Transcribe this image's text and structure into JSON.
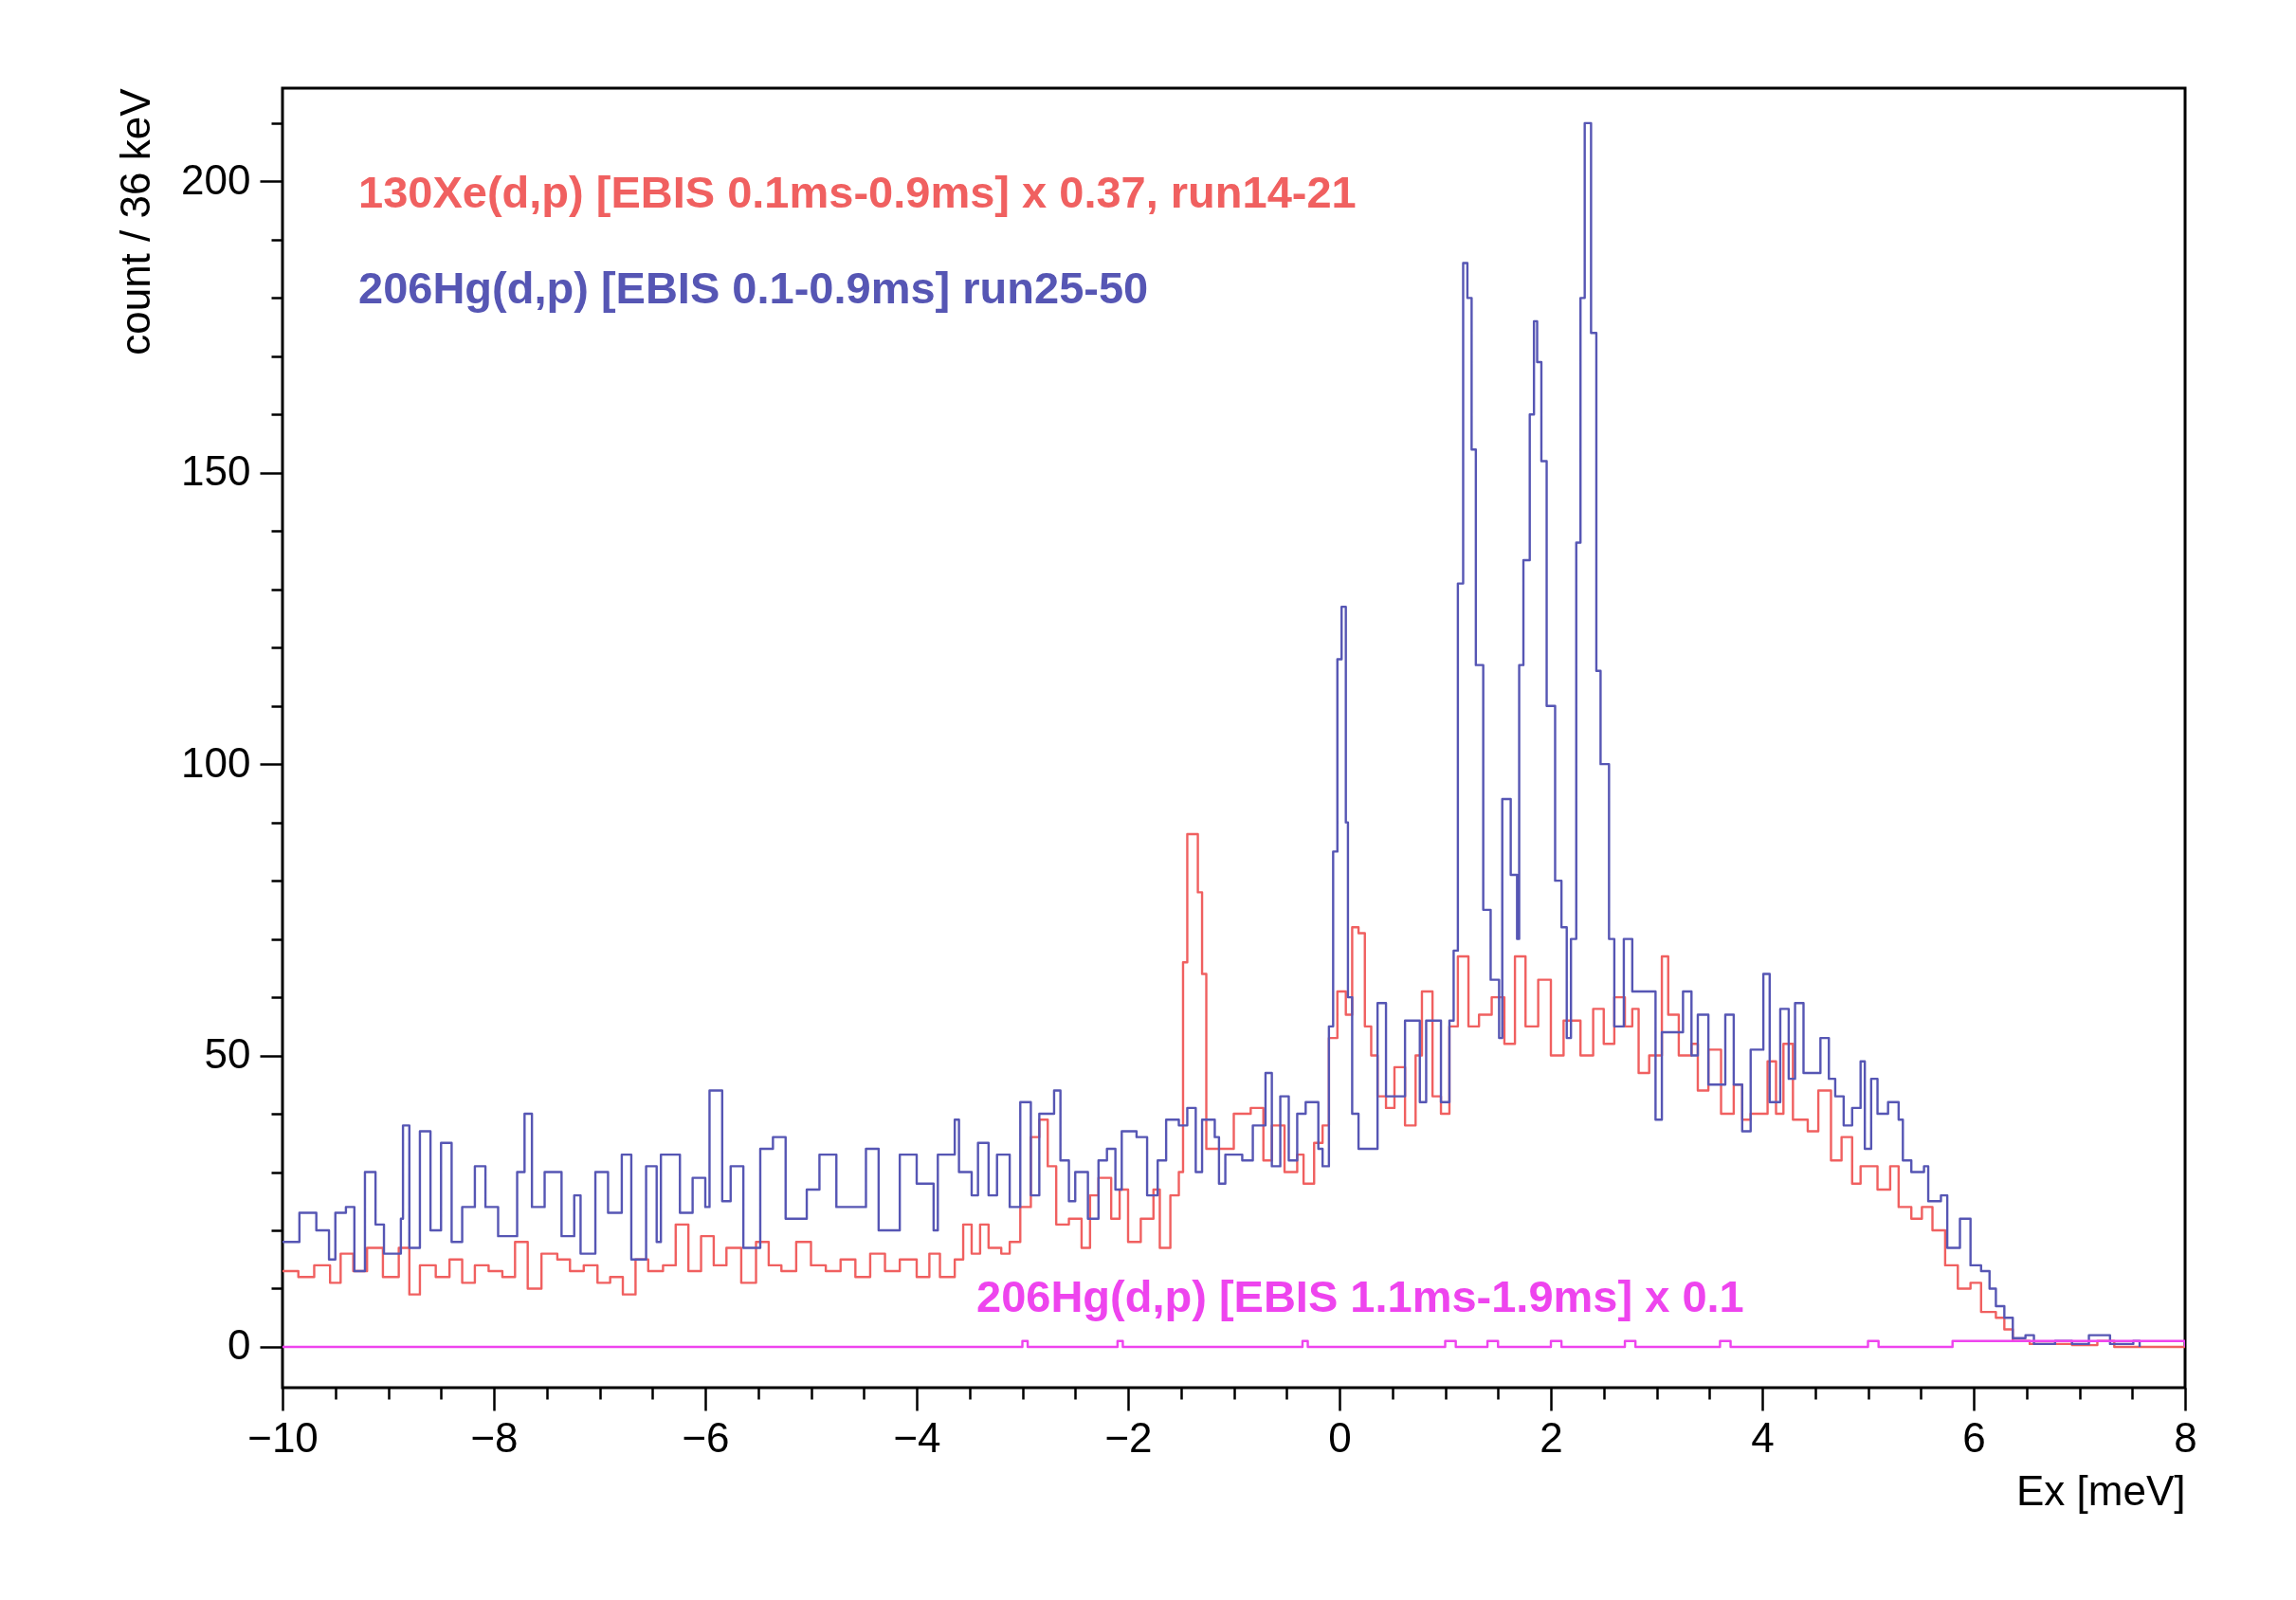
{
  "chart_data": {
    "type": "step",
    "xlabel": "Ex [meV]",
    "ylabel": "count / 36 keV",
    "xlim": [
      -10,
      8
    ],
    "ylim": [
      -7,
      216
    ],
    "xticks": [
      -10,
      {
        "value": -9.5,
        "label": null
      },
      {
        "value": -9,
        "label": null
      },
      {
        "value": -8.5,
        "label": null
      },
      -8,
      {
        "value": -7.5,
        "label": null
      },
      {
        "value": -7,
        "label": null
      },
      {
        "value": -6.5,
        "label": null
      },
      -6,
      {
        "value": -5.5,
        "label": null
      },
      {
        "value": -5,
        "label": null
      },
      {
        "value": -4.5,
        "label": null
      },
      -4,
      {
        "value": -3.5,
        "label": null
      },
      {
        "value": -3,
        "label": null
      },
      {
        "value": -2.5,
        "label": null
      },
      -2,
      {
        "value": -1.5,
        "label": null
      },
      {
        "value": -1,
        "label": null
      },
      {
        "value": -0.5,
        "label": null
      },
      0,
      {
        "value": 0.5,
        "label": null
      },
      {
        "value": 1,
        "label": null
      },
      {
        "value": 1.5,
        "label": null
      },
      2,
      {
        "value": 2.5,
        "label": null
      },
      {
        "value": 3,
        "label": null
      },
      {
        "value": 3.5,
        "label": null
      },
      4,
      {
        "value": 4.5,
        "label": null
      },
      {
        "value": 5,
        "label": null
      },
      {
        "value": 5.5,
        "label": null
      },
      6,
      {
        "value": 6.5,
        "label": null
      },
      {
        "value": 7,
        "label": null
      },
      {
        "value": 7.5,
        "label": null
      },
      8
    ],
    "yticks": [
      0,
      {
        "value": 10,
        "label": null
      },
      {
        "value": 20,
        "label": null
      },
      {
        "value": 30,
        "label": null
      },
      {
        "value": 40,
        "label": null
      },
      50,
      {
        "value": 60,
        "label": null
      },
      {
        "value": 70,
        "label": null
      },
      {
        "value": 80,
        "label": null
      },
      {
        "value": 90,
        "label": null
      },
      100,
      {
        "value": 110,
        "label": null
      },
      {
        "value": 120,
        "label": null
      },
      {
        "value": 130,
        "label": null
      },
      {
        "value": 140,
        "label": null
      },
      150,
      {
        "value": 160,
        "label": null
      },
      {
        "value": 170,
        "label": null
      },
      {
        "value": 180,
        "label": null
      },
      {
        "value": 190,
        "label": null
      },
      200,
      {
        "value": 210,
        "label": null
      }
    ],
    "series": [
      {
        "name": "130Xe(d,p) [EBIS 0.1ms-0.9ms] x 0.37, run14-21",
        "color": "#f06060",
        "x": [
          -10.0,
          -9.85,
          -9.7,
          -9.55,
          -9.45,
          -9.33,
          -9.2,
          -9.05,
          -8.9,
          -8.8,
          -8.7,
          -8.55,
          -8.42,
          -8.3,
          -8.18,
          -8.05,
          -7.92,
          -7.8,
          -7.68,
          -7.55,
          -7.4,
          -7.28,
          -7.15,
          -7.02,
          -6.9,
          -6.78,
          -6.66,
          -6.54,
          -6.4,
          -6.28,
          -6.16,
          -6.04,
          -5.92,
          -5.8,
          -5.66,
          -5.52,
          -5.4,
          -5.28,
          -5.14,
          -5.0,
          -4.86,
          -4.72,
          -4.58,
          -4.44,
          -4.3,
          -4.16,
          -4.0,
          -3.88,
          -3.78,
          -3.64,
          -3.56,
          -3.48,
          -3.4,
          -3.32,
          -3.2,
          -3.12,
          -3.02,
          -2.92,
          -2.84,
          -2.76,
          -2.68,
          -2.56,
          -2.44,
          -2.36,
          -2.28,
          -2.16,
          -2.08,
          -2.0,
          -1.88,
          -1.76,
          -1.7,
          -1.6,
          -1.52,
          -1.48,
          -1.44,
          -1.34,
          -1.3,
          -1.26,
          -1.08,
          -1.0,
          -0.84,
          -0.72,
          -0.64,
          -0.52,
          -0.4,
          -0.34,
          -0.24,
          -0.16,
          -0.1,
          -0.02,
          0.06,
          0.12,
          0.18,
          0.24,
          0.3,
          0.36,
          0.44,
          0.52,
          0.62,
          0.72,
          0.78,
          0.88,
          0.96,
          1.04,
          1.12,
          1.22,
          1.32,
          1.44,
          1.56,
          1.66,
          1.76,
          1.88,
          2.0,
          2.12,
          2.28,
          2.4,
          2.5,
          2.6,
          2.7,
          2.77,
          2.83,
          2.93,
          3.05,
          3.11,
          3.21,
          3.33,
          3.39,
          3.49,
          3.61,
          3.73,
          3.81,
          3.89,
          4.05,
          4.13,
          4.2,
          4.29,
          4.43,
          4.53,
          4.65,
          4.75,
          4.85,
          4.93,
          5.09,
          5.21,
          5.29,
          5.41,
          5.51,
          5.61,
          5.73,
          5.85,
          5.97,
          6.07,
          6.21,
          6.29,
          6.37,
          6.53,
          6.93,
          7.17,
          7.33,
          8.0
        ],
        "values": [
          13,
          12,
          14,
          11,
          16,
          13,
          17,
          12,
          17,
          9,
          14,
          12,
          15,
          11,
          14,
          13,
          12,
          18,
          10,
          16,
          15,
          13,
          14,
          11,
          12,
          9,
          15,
          13,
          14,
          21,
          13,
          19,
          14,
          17,
          11,
          18,
          14,
          13,
          18,
          14,
          13,
          15,
          12,
          16,
          13,
          15,
          12,
          16,
          12,
          15,
          21,
          16,
          21,
          17,
          16,
          18,
          24,
          36,
          39,
          31,
          21,
          22,
          17,
          26,
          29,
          22,
          27,
          18,
          22,
          27,
          17,
          26,
          30,
          66,
          88,
          78,
          64,
          34,
          34,
          40,
          41,
          32,
          38,
          30,
          33,
          28,
          35,
          38,
          53,
          61,
          57,
          72,
          71,
          55,
          50,
          43,
          41,
          48,
          38,
          50,
          61,
          43,
          40,
          55,
          67,
          55,
          57,
          60,
          52,
          67,
          55,
          63,
          50,
          56,
          50,
          58,
          52,
          60,
          55,
          58,
          47,
          50,
          67,
          57,
          50,
          52,
          44,
          51,
          40,
          45,
          39,
          40,
          49,
          40,
          52,
          39,
          37,
          44,
          32,
          36,
          28,
          31,
          27,
          31,
          24,
          22,
          24,
          20,
          14,
          10,
          11,
          6,
          5,
          3,
          1,
          0.5,
          0.3,
          1,
          0,
          0
        ]
      },
      {
        "name": "206Hg(d,p) [EBIS 0.1-0.9ms] run25-50",
        "color": "#5656b4",
        "x": [
          -10.0,
          -9.84,
          -9.68,
          -9.56,
          -9.5,
          -9.4,
          -9.32,
          -9.22,
          -9.12,
          -9.04,
          -8.88,
          -8.86,
          -8.8,
          -8.7,
          -8.6,
          -8.5,
          -8.4,
          -8.3,
          -8.18,
          -8.08,
          -7.96,
          -7.78,
          -7.71,
          -7.64,
          -7.52,
          -7.36,
          -7.24,
          -7.18,
          -7.04,
          -6.92,
          -6.79,
          -6.7,
          -6.56,
          -6.46,
          -6.42,
          -6.24,
          -6.12,
          -6.0,
          -5.96,
          -5.84,
          -5.76,
          -5.64,
          -5.48,
          -5.36,
          -5.24,
          -5.04,
          -4.92,
          -4.76,
          -4.6,
          -4.48,
          -4.36,
          -4.16,
          -4.0,
          -3.84,
          -3.8,
          -3.64,
          -3.6,
          -3.48,
          -3.42,
          -3.32,
          -3.24,
          -3.12,
          -3.02,
          -2.92,
          -2.84,
          -2.7,
          -2.64,
          -2.56,
          -2.5,
          -2.38,
          -2.28,
          -2.2,
          -2.12,
          -2.06,
          -1.92,
          -1.82,
          -1.72,
          -1.64,
          -1.52,
          -1.44,
          -1.36,
          -1.3,
          -1.18,
          -1.14,
          -1.08,
          -0.92,
          -0.82,
          -0.7,
          -0.64,
          -0.56,
          -0.48,
          -0.4,
          -0.32,
          -0.2,
          -0.16,
          -0.1,
          -0.06,
          -0.02,
          0.02,
          0.06,
          0.08,
          0.12,
          0.18,
          0.36,
          0.44,
          0.62,
          0.76,
          0.82,
          0.96,
          1.04,
          1.08,
          1.12,
          1.17,
          1.21,
          1.25,
          1.29,
          1.36,
          1.43,
          1.51,
          1.54,
          1.62,
          1.68,
          1.7,
          1.74,
          1.8,
          1.84,
          1.87,
          1.91,
          1.96,
          2.04,
          2.1,
          2.15,
          2.19,
          2.24,
          2.28,
          2.32,
          2.38,
          2.43,
          2.47,
          2.55,
          2.6,
          2.69,
          2.77,
          2.99,
          3.05,
          3.25,
          3.33,
          3.39,
          3.49,
          3.65,
          3.73,
          3.81,
          3.89,
          4.01,
          4.07,
          4.17,
          4.25,
          4.31,
          4.39,
          4.55,
          4.63,
          4.69,
          4.77,
          4.85,
          4.93,
          4.97,
          5.03,
          5.09,
          5.19,
          5.29,
          5.33,
          5.41,
          5.53,
          5.57,
          5.69,
          5.75,
          5.87,
          5.97,
          6.07,
          6.15,
          6.21,
          6.29,
          6.37,
          6.49,
          6.57,
          6.77,
          6.93,
          7.09,
          7.29,
          7.51,
          7.57
        ],
        "values": [
          18,
          23,
          20,
          15,
          23,
          24,
          13,
          30,
          21,
          16,
          22,
          38,
          17,
          37,
          20,
          35,
          18,
          24,
          31,
          24,
          19,
          30,
          40,
          24,
          30,
          19,
          26,
          16,
          30,
          23,
          33,
          15,
          31,
          18,
          33,
          23,
          29,
          24,
          44,
          25,
          31,
          17,
          34,
          36,
          22,
          27,
          33,
          24,
          24,
          34,
          20,
          33,
          28,
          20,
          33,
          39,
          30,
          26,
          35,
          26,
          33,
          24,
          42,
          26,
          40,
          44,
          32,
          25,
          30,
          22,
          32,
          34,
          27,
          37,
          36,
          26,
          32,
          39,
          38,
          41,
          30,
          39,
          36,
          28,
          33,
          32,
          38,
          47,
          31,
          43,
          32,
          40,
          42,
          34,
          31,
          55,
          85,
          118,
          127,
          90,
          60,
          40,
          34,
          59,
          43,
          56,
          42,
          56,
          42,
          56,
          68,
          131,
          186,
          180,
          154,
          117,
          75,
          63,
          53,
          94,
          81,
          70,
          117,
          135,
          160,
          176,
          169,
          152,
          110,
          80,
          72,
          53,
          70,
          138,
          180,
          210,
          174,
          116,
          100,
          70,
          55,
          70,
          61,
          39,
          54,
          61,
          50,
          57,
          45,
          57,
          45,
          37,
          51,
          64,
          42,
          58,
          46,
          59,
          47,
          53,
          46,
          43,
          38,
          41,
          49,
          34,
          46,
          40,
          42,
          39,
          32,
          30,
          31,
          25,
          26,
          17,
          22,
          14,
          13,
          10,
          7,
          5,
          1.5,
          2,
          0.5,
          1,
          0.5,
          2,
          0.5,
          1,
          0
        ]
      },
      {
        "name": "206Hg(d,p) [EBIS 1.1ms-1.9ms] x 0.1",
        "color": "#ee44ee",
        "x": [
          -10.0,
          -3.05,
          -3.0,
          -2.95,
          -2.15,
          -2.1,
          -2.05,
          -0.4,
          -0.35,
          -0.3,
          0.9,
          1.0,
          1.1,
          1.3,
          1.4,
          1.5,
          1.9,
          2.0,
          2.1,
          2.6,
          2.7,
          2.8,
          3.5,
          3.6,
          3.7,
          4.9,
          5.0,
          5.1,
          5.7,
          5.8,
          8.0
        ],
        "values": [
          0,
          0,
          1,
          0,
          0,
          1,
          0,
          0,
          1,
          0,
          0,
          1,
          0,
          0,
          1,
          0,
          0,
          1,
          0,
          0,
          1,
          0,
          0,
          1,
          0,
          0,
          1,
          0,
          0,
          1,
          0
        ]
      }
    ]
  }
}
